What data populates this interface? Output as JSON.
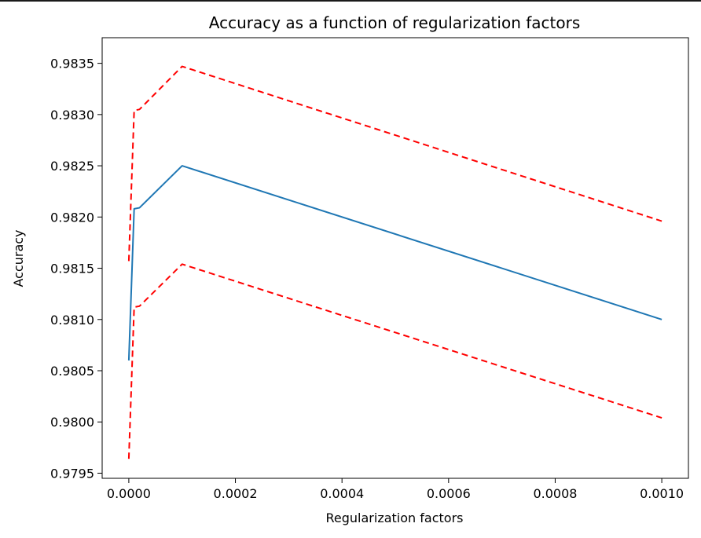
{
  "chart_data": {
    "type": "line",
    "title": "Accuracy as a function of regularization factors",
    "xlabel": "Regularization factors",
    "ylabel": "Accuracy",
    "xlim": [
      -5e-05,
      0.00105
    ],
    "ylim": [
      0.97945,
      0.98375
    ],
    "xticks": [
      0.0,
      0.0002,
      0.0004,
      0.0006,
      0.0008,
      0.001
    ],
    "xtick_labels": [
      "0.0000",
      "0.0002",
      "0.0004",
      "0.0006",
      "0.0008",
      "0.0010"
    ],
    "yticks": [
      0.9795,
      0.98,
      0.9805,
      0.981,
      0.9815,
      0.982,
      0.9825,
      0.983,
      0.9835
    ],
    "ytick_labels": [
      "0.9795",
      "0.9800",
      "0.9805",
      "0.9810",
      "0.9815",
      "0.9820",
      "0.9825",
      "0.9830",
      "0.9835"
    ],
    "grid": false,
    "legend": "none",
    "x": [
      0.0,
      1e-05,
      2e-05,
      0.0001,
      0.001
    ],
    "series": [
      {
        "style": "solid",
        "color": "#1f77b4",
        "values": [
          0.9806,
          0.98208,
          0.98209,
          0.9825,
          0.981
        ]
      },
      {
        "style": "dashed",
        "color": "#ff0000",
        "values": [
          0.98157,
          0.98304,
          0.98305,
          0.98347,
          0.98196
        ]
      },
      {
        "style": "dashed",
        "color": "#ff0000",
        "values": [
          0.97964,
          0.98112,
          0.98113,
          0.98154,
          0.98004
        ]
      }
    ]
  }
}
